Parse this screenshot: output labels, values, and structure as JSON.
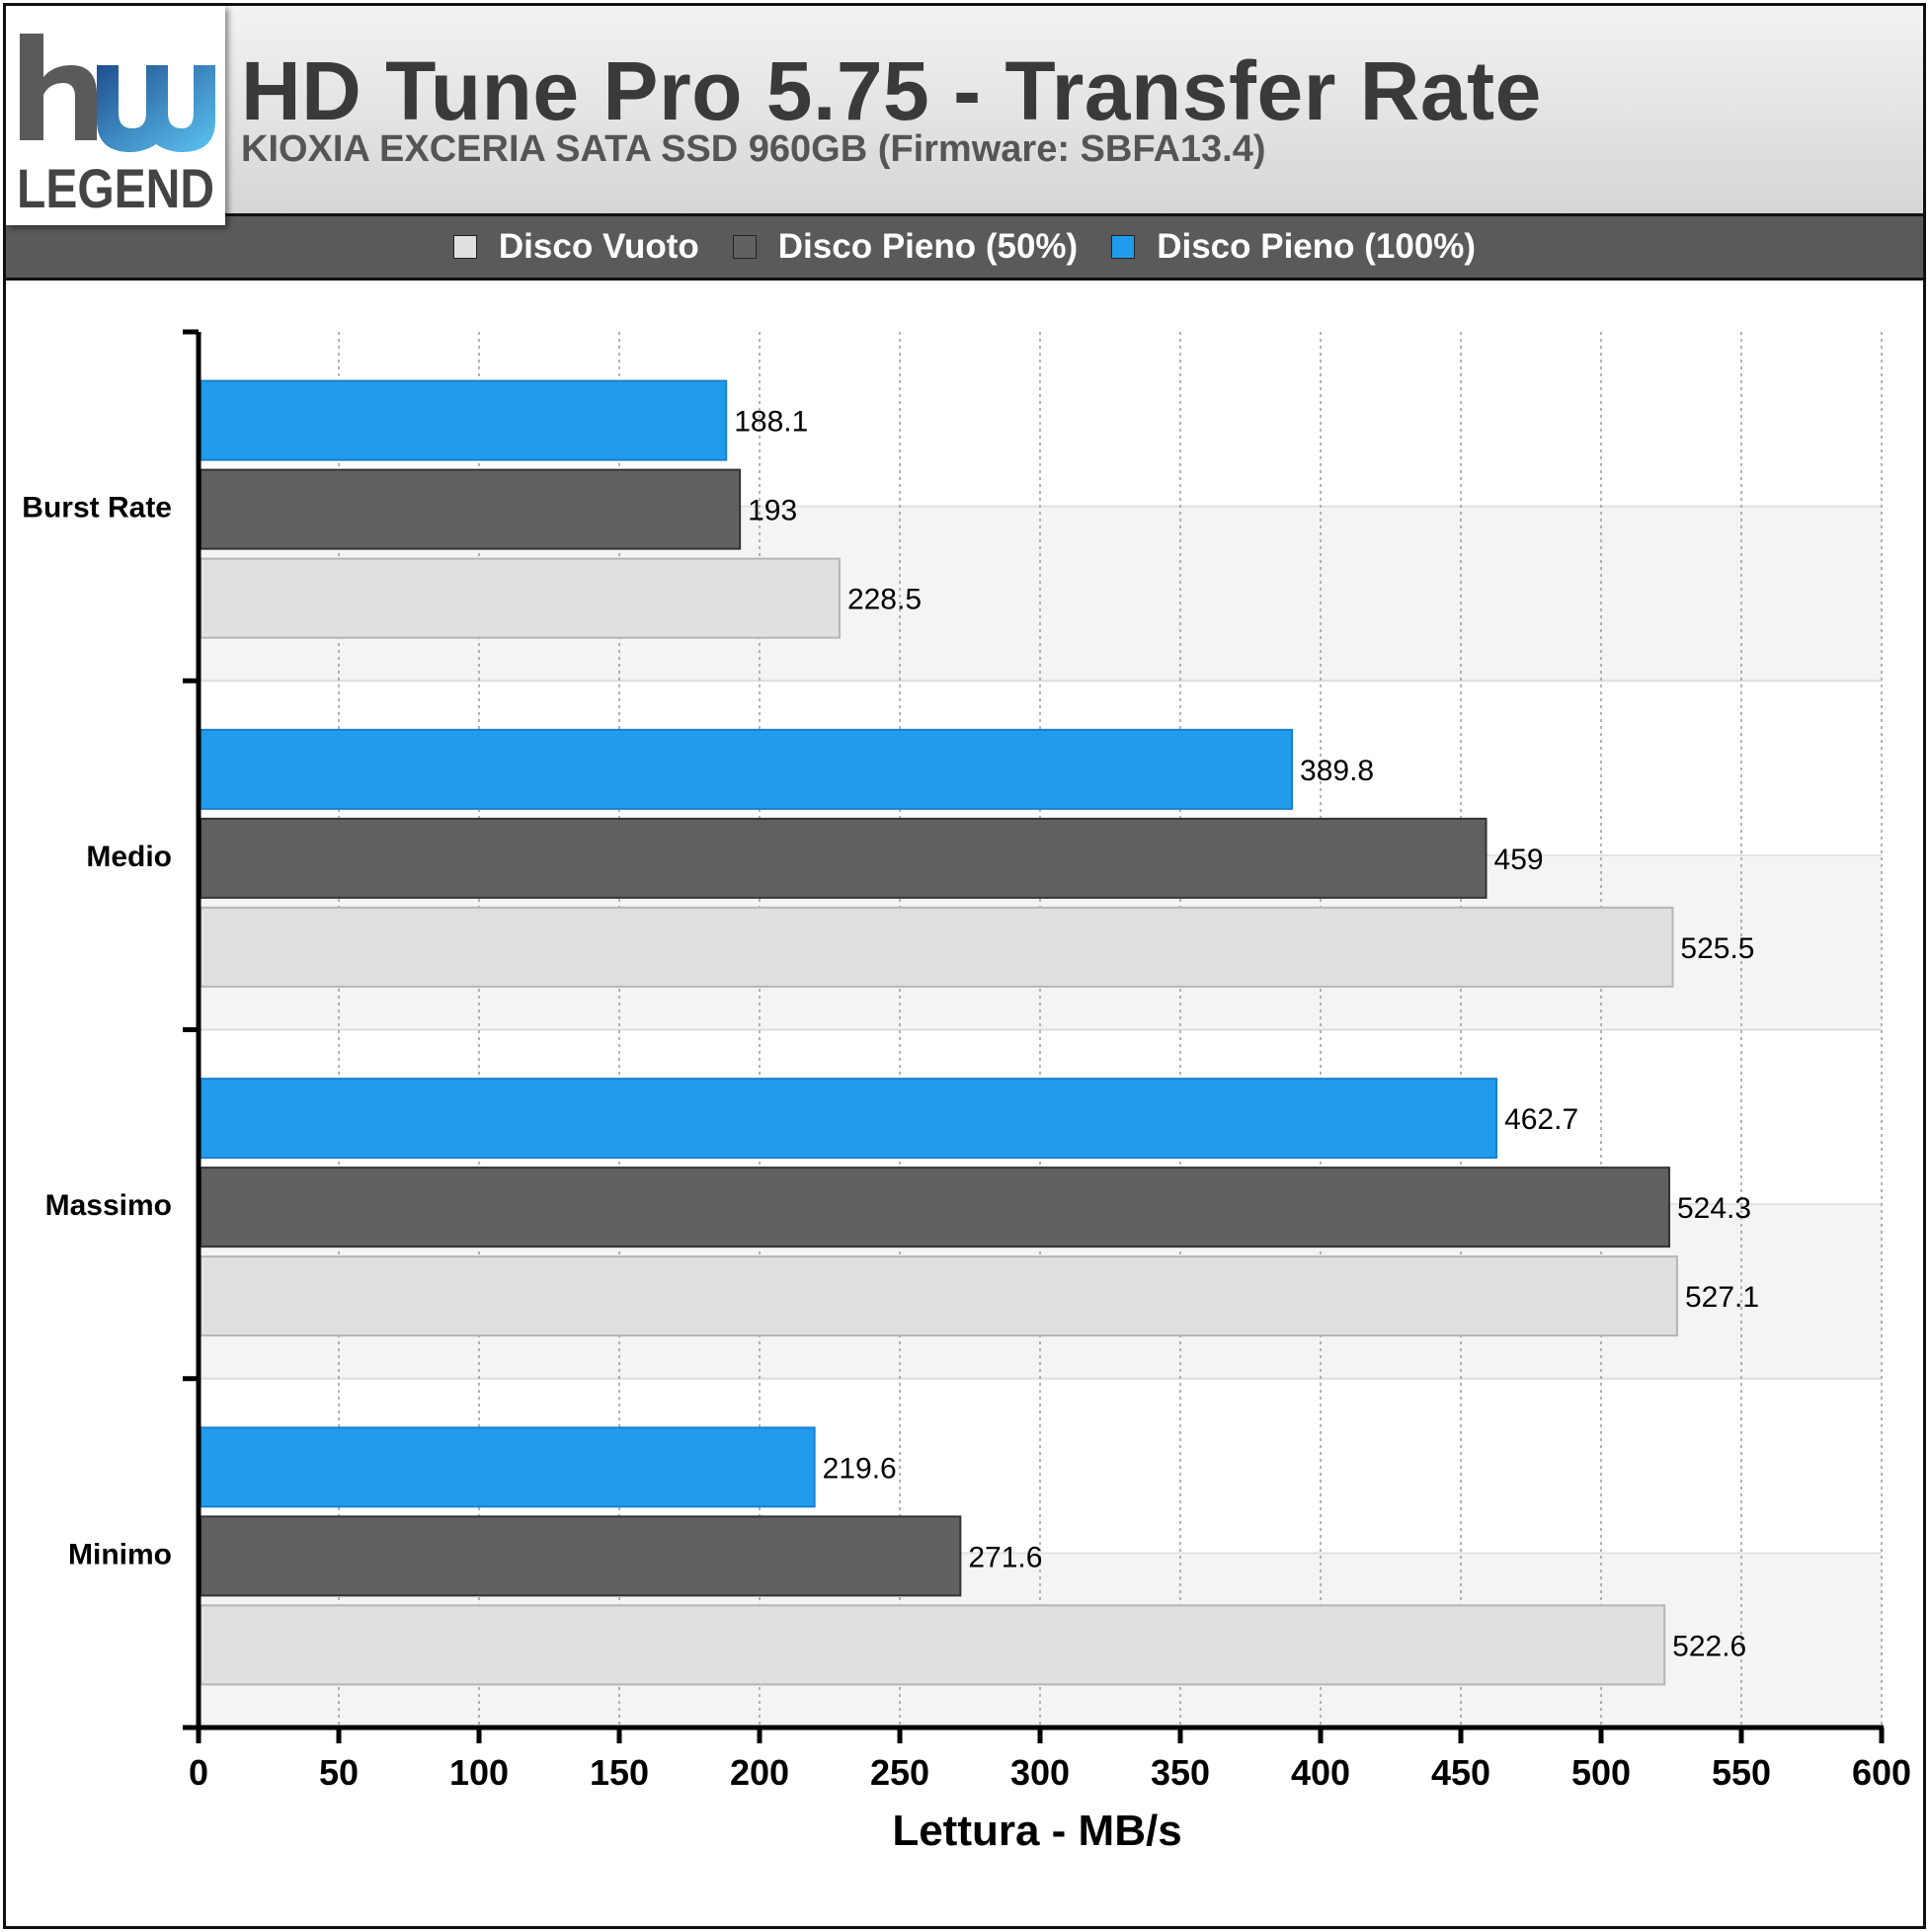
{
  "header": {
    "title": "HD Tune Pro 5.75 - Transfer Rate",
    "subtitle": "KIOXIA EXCERIA SATA SSD 960GB (Firmware: SBFA13.4)",
    "logo_text": "LEGEND",
    "logo_mark": "hw"
  },
  "colors": {
    "accent_blue": "#219cec",
    "dark_gray": "#616161",
    "light_gray": "#e0e0e0"
  },
  "chart_data": {
    "type": "bar",
    "orientation": "horizontal",
    "categories": [
      "Burst Rate",
      "Medio",
      "Massimo",
      "Minimo"
    ],
    "series": [
      {
        "name": "Disco Vuoto",
        "color": "#e0e0e0",
        "values": [
          228.5,
          525.5,
          527.1,
          522.6
        ]
      },
      {
        "name": "Disco Pieno (50%)",
        "color": "#616161",
        "values": [
          193,
          459,
          524.3,
          271.6
        ]
      },
      {
        "name": "Disco Pieno (100%)",
        "color": "#219cec",
        "values": [
          188.1,
          389.8,
          462.7,
          219.6
        ]
      }
    ],
    "xlabel": "Lettura - MB/s",
    "ylabel": "",
    "xlim": [
      0,
      600
    ],
    "xticks": [
      0,
      50,
      100,
      150,
      200,
      250,
      300,
      350,
      400,
      450,
      500,
      550,
      600
    ],
    "grid": true,
    "legend_position": "top"
  }
}
